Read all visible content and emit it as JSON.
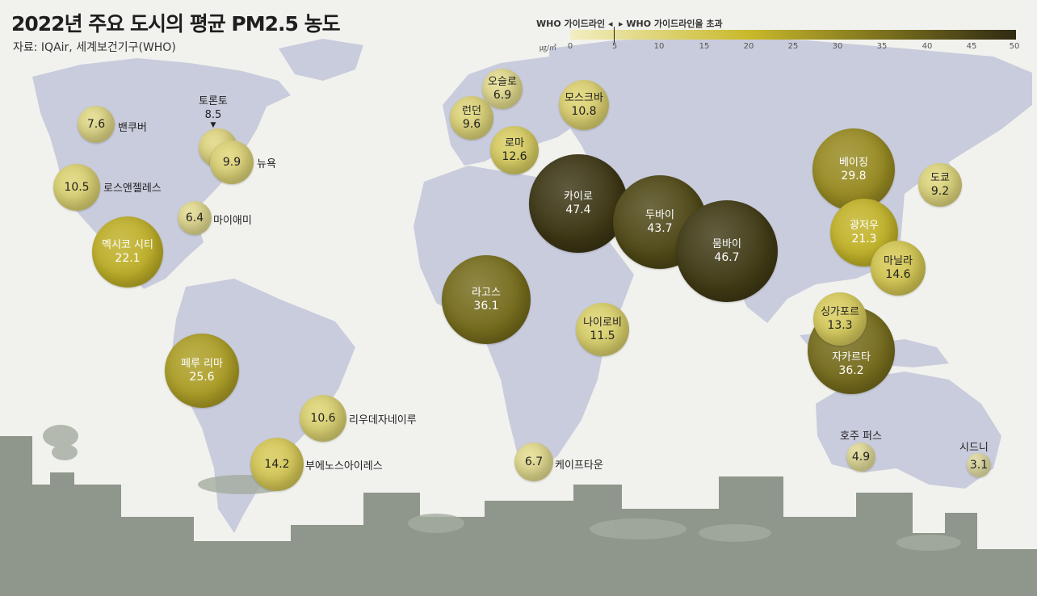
{
  "header": {
    "title": "2022년 주요 도시의 평균 PM2.5 농도",
    "source": "자료: IQAir, 세계보건기구(WHO)"
  },
  "scale": {
    "guideline_below": "WHO 가이드라인 ◂",
    "guideline_above": "▸ WHO 가이드라인을 초과",
    "unit": "㎍/㎥",
    "ticks": [
      "0",
      "5",
      "10",
      "15",
      "20",
      "25",
      "30",
      "35",
      "40",
      "45",
      "50"
    ],
    "min": 0,
    "max": 50,
    "guideline": 5,
    "colors": {
      "low": "#f2eec2",
      "mid": "#c9b92a",
      "high": "#2f2a12"
    }
  },
  "cities": [
    {
      "name": "밴쿠버",
      "value": "7.6"
    },
    {
      "name": "토론토",
      "value": "8.5"
    },
    {
      "name": "뉴욕",
      "value": "9.9"
    },
    {
      "name": "로스앤젤레스",
      "value": "10.5"
    },
    {
      "name": "마이애미",
      "value": "6.4"
    },
    {
      "name": "멕시코 시티",
      "value": "22.1"
    },
    {
      "name": "페루 리마",
      "value": "25.6"
    },
    {
      "name": "리우데자네이루",
      "value": "10.6"
    },
    {
      "name": "부에노스아이레스",
      "value": "14.2"
    },
    {
      "name": "오슬로",
      "value": "6.9"
    },
    {
      "name": "런던",
      "value": "9.6"
    },
    {
      "name": "모스크바",
      "value": "10.8"
    },
    {
      "name": "로마",
      "value": "12.6"
    },
    {
      "name": "카이로",
      "value": "47.4"
    },
    {
      "name": "두바이",
      "value": "43.7"
    },
    {
      "name": "뭄바이",
      "value": "46.7"
    },
    {
      "name": "라고스",
      "value": "36.1"
    },
    {
      "name": "나이로비",
      "value": "11.5"
    },
    {
      "name": "케이프타운",
      "value": "6.7"
    },
    {
      "name": "베이징",
      "value": "29.8"
    },
    {
      "name": "도쿄",
      "value": "9.2"
    },
    {
      "name": "광저우",
      "value": "21.3"
    },
    {
      "name": "마닐라",
      "value": "14.6"
    },
    {
      "name": "싱가포르",
      "value": "13.3"
    },
    {
      "name": "자카르타",
      "value": "36.2"
    },
    {
      "name": "호주 퍼스",
      "value": "4.9"
    },
    {
      "name": "시드니",
      "value": "3.1"
    }
  ]
}
